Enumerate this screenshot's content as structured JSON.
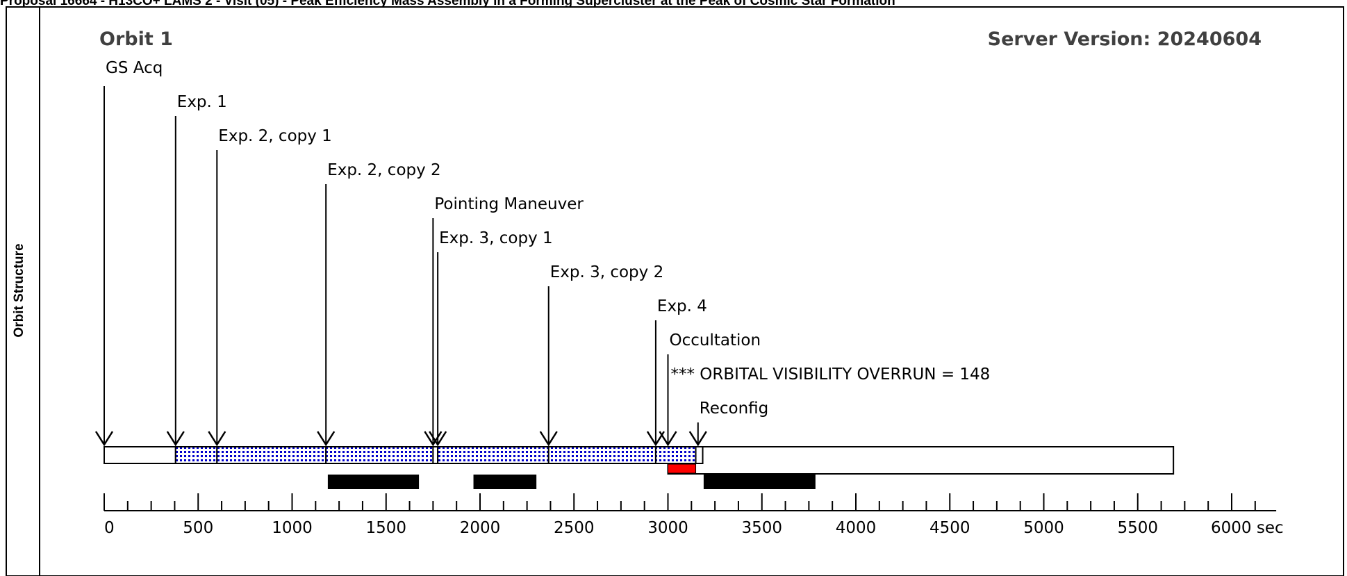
{
  "page": {
    "title": "Proposal 16664 - H13CO+ LAMS 2 - Visit (05) - Peak Efficiency Mass Assembly in a Forming Supercluster at the Peak of Cosmic Star Formation",
    "side_label": "Orbit Structure"
  },
  "chart_data": {
    "type": "timeline",
    "title": "Orbit 1",
    "server_version": "Server Version: 20240604",
    "x_unit": "sec",
    "x_range": [
      0,
      6200
    ],
    "x_ticks": [
      0,
      500,
      1000,
      1500,
      2000,
      2500,
      3000,
      3500,
      4000,
      4500,
      5000,
      5500,
      6000
    ],
    "x_tick_labels": [
      "0",
      "500",
      "1000",
      "1500",
      "2000",
      "2500",
      "3000",
      "3500",
      "4000",
      "4500",
      "5000",
      "5500",
      "6000 sec"
    ],
    "events": [
      {
        "label": "GS Acq",
        "t": 0
      },
      {
        "label": "Exp. 1",
        "t": 380
      },
      {
        "label": "Exp. 2, copy 1",
        "t": 600
      },
      {
        "label": "Exp. 2, copy 2",
        "t": 1180
      },
      {
        "label": "Pointing Maneuver",
        "t": 1750
      },
      {
        "label": "Exp. 3, copy 1",
        "t": 1775
      },
      {
        "label": "Exp. 3, copy 2",
        "t": 2365
      },
      {
        "label": "Exp. 4",
        "t": 2935
      },
      {
        "label": "Occultation",
        "t": 3000
      },
      {
        "label": "*** ORBITAL VISIBILITY OVERRUN = 148",
        "t": 3000
      },
      {
        "label": "Reconfig",
        "t": 3160
      }
    ],
    "upper_bars": [
      {
        "start": 0,
        "end": 380,
        "fill": "white"
      },
      {
        "start": 380,
        "end": 600,
        "fill": "dotted"
      },
      {
        "start": 600,
        "end": 1180,
        "fill": "dotted"
      },
      {
        "start": 1180,
        "end": 1750,
        "fill": "dotted"
      },
      {
        "start": 1750,
        "end": 1775,
        "fill": "white"
      },
      {
        "start": 1775,
        "end": 2365,
        "fill": "dotted"
      },
      {
        "start": 2365,
        "end": 2935,
        "fill": "dotted"
      },
      {
        "start": 2935,
        "end": 3148,
        "fill": "dotted"
      },
      {
        "start": 3148,
        "end": 3185,
        "fill": "white"
      }
    ],
    "visibility_window": {
      "start": 3000,
      "end": 5690
    },
    "overrun": {
      "start": 3000,
      "end": 3148,
      "color": "#ff0000"
    },
    "black_bars": [
      {
        "start": 1190,
        "end": 1675
      },
      {
        "start": 1965,
        "end": 2300
      },
      {
        "start": 3190,
        "end": 3785
      }
    ],
    "colors": {
      "dot_blue": "#0000cc",
      "overrun_red": "#ff0000",
      "text_gray": "#404040"
    }
  }
}
